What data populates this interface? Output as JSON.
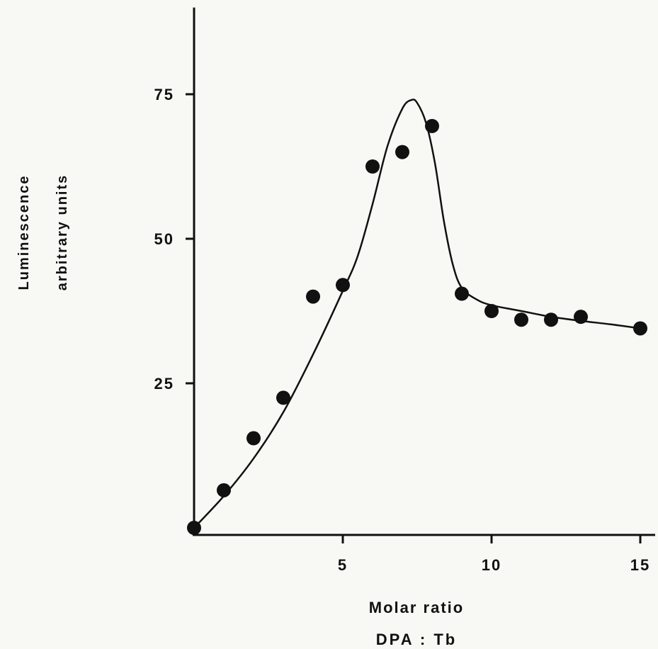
{
  "chart_data": {
    "type": "scatter",
    "title": "",
    "xlabel": "Molar ratio",
    "xlabel_line2": "DPA : Tb",
    "ylabel": "Luminescence",
    "ylabel_line2": "arbitrary units",
    "xlim": [
      0,
      15.5
    ],
    "ylim": [
      0,
      90
    ],
    "x_ticks": [
      5,
      10,
      15
    ],
    "y_ticks": [
      25,
      50,
      75
    ],
    "grid": false,
    "legend": "none",
    "series": [
      {
        "kind": "points",
        "x": [
          0,
          1,
          2,
          3,
          4,
          5,
          6,
          7,
          8,
          9,
          10,
          11,
          12,
          13,
          15
        ],
        "y": [
          0,
          6.5,
          15.5,
          22.5,
          40,
          42,
          62.5,
          65,
          69.5,
          40.5,
          37.5,
          36,
          36,
          36.5,
          34.5
        ]
      },
      {
        "kind": "curve",
        "x": [
          0,
          1,
          2,
          3,
          4,
          5,
          5.5,
          6,
          6.5,
          7,
          7.3,
          7.5,
          7.8,
          8.1,
          8.4,
          8.7,
          9,
          9.5,
          10,
          11,
          12,
          13,
          14,
          15
        ],
        "y": [
          0,
          5.5,
          12,
          20,
          30,
          41,
          47,
          56,
          66,
          72.5,
          74,
          73.5,
          70,
          63,
          53,
          45.5,
          41.5,
          39.5,
          38.5,
          37.5,
          36.5,
          35.8,
          35.2,
          34.5
        ]
      }
    ],
    "colors": {
      "ink": "#111111",
      "background": "#f8f8f4"
    }
  }
}
